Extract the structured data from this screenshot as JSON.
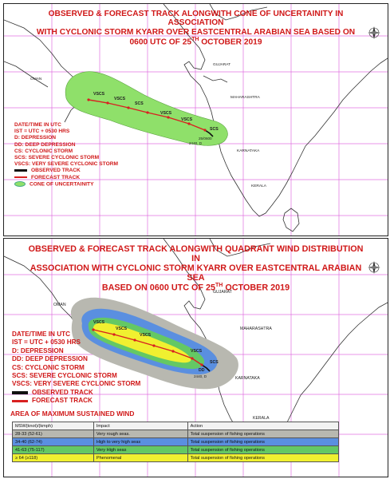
{
  "panel_top": {
    "title_line1": "OBSERVED & FORECAST TRACK ALONGWITH CONE OF UNCERTAINITY IN ASSOCIATION",
    "title_line2": "WITH CYCLONIC STORM KYARR OVER EASTCENTRAL ARABIAN SEA BASED ON",
    "title_line3_pre": "0600 UTC OF 25",
    "title_sup": "TH",
    "title_line3_post": " OCTOBER 2019",
    "legend": {
      "date_time": "DATE/TIME IN UTC",
      "ist": "IST = UTC + 0530 HRS",
      "d": "D: DEPRESSION",
      "dd": "DD: DEEP DEPRESSION",
      "cs": "CS: CYCLONIC STORM",
      "scs": "SCS: SEVERE CYCLONIC STORM",
      "vscs": "VSCS: VERY SEVERE CYCLONIC STORM",
      "observed": "OBSERVED TRACK",
      "forecast": "FORECAST TRACK",
      "cone": "CONE OF UNCERTAINITY"
    },
    "places": {
      "gujarat": "GUJARAT",
      "oman": "OMAN",
      "maharashtra": "MAHARASHTRA",
      "karnataka": "KARNATAKA",
      "kerala": "KERALA"
    },
    "stages": {
      "vscs1": "VSCS",
      "vscs2": "VSCS",
      "scs": "SCS",
      "vscs3": "VSCS",
      "vscs4": "VSCS",
      "scs2": "SCS"
    },
    "points": {
      "p1": "25/0600",
      "p2": "2440, D"
    }
  },
  "panel_bottom": {
    "title_line1": "OBSERVED & FORECAST TRACK ALONGWITH QUADRANT WIND DISTRIBUTION IN",
    "title_line2": "ASSOCIATION WITH CYCLONIC STORM KYARR OVER EASTCENTRAL ARABIAN SEA",
    "title_line3_pre": "BASED ON 0600 UTC OF 25",
    "title_sup": "TH",
    "title_line3_post": " OCTOBER 2019",
    "legend": {
      "date_time": "DATE/TIME IN UTC",
      "ist": "IST = UTC + 0530 HRS",
      "d": "D: DEPRESSION",
      "dd": "DD: DEEP DEPRESSION",
      "cs": "CS: CYCLONIC STORM",
      "scs": "SCS: SEVERE CYCLONIC STORM",
      "vscs": "VSCS: VERY SEVERE CYCLONIC STORM",
      "observed": "OBSERVED TRACK",
      "forecast": "FORECAST TRACK"
    },
    "places": {
      "gujarat": "GUJARAT",
      "oman": "OMAN",
      "maharashtra": "MAHARASHTRA",
      "karnataka": "KARNATAKA",
      "kerala": "KERALA"
    },
    "stages": {
      "vscs1": "VSCS",
      "vscs2": "VSCS",
      "vscs3": "VSCS",
      "vscs4": "VSCS",
      "scs": "SCS",
      "dd": "DD"
    },
    "points": {
      "p1": "2440, D"
    },
    "area_title": "AREA OF MAXIMUM SUSTAINED WIND",
    "table": {
      "headers": [
        "MSW(knot)/(kmph)",
        "Impact",
        "Action"
      ],
      "rows": [
        [
          "28-33 (52-61)",
          "Very rough seas.",
          "Total suspension of fishing operations"
        ],
        [
          "34-40 (62-74)",
          "High to very high seas",
          "Total suspension of fishing operations"
        ],
        [
          "41-63 (75-117)",
          "Very High seas",
          "Total suspension of fishing operations"
        ],
        [
          "≥ 64   (≥118)",
          "Phenomenal",
          "Total suspension of fishing operations"
        ]
      ],
      "row_colors": [
        "#b8b8b0",
        "#5a8fe0",
        "#64c864",
        "#f0f030"
      ]
    }
  },
  "colors": {
    "title": "#d01818",
    "cone": "#8fe06a",
    "track": "#d82020",
    "grid": "#e070e0",
    "land": "#ffffff",
    "coast": "#333333"
  }
}
